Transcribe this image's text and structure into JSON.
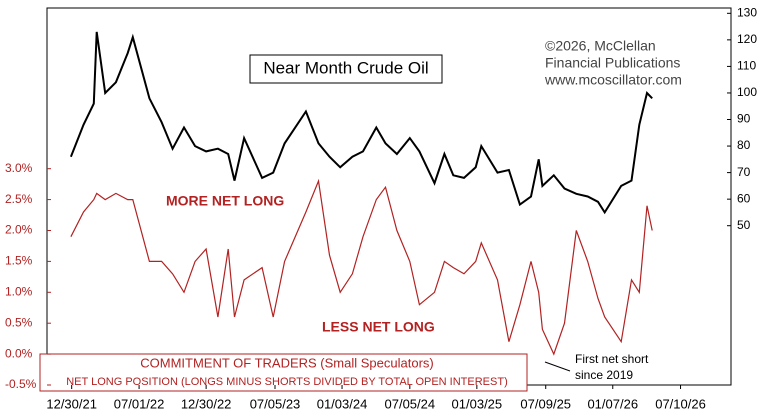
{
  "chart_data": {
    "type": "line",
    "title": "Near Month Crude Oil",
    "credits": [
      "©2026, McClellan",
      "Financial Publications",
      "www.mcoscillator.com"
    ],
    "annotations": [
      "MORE NET LONG",
      "LESS NET LONG",
      "COMMITMENT OF TRADERS (Small Speculators)",
      "NET LONG POSITION (LONGS MINUS SHORTS DIVIDED BY TOTAL OPEN INTEREST)",
      "First net short",
      "since 2019"
    ],
    "x": [
      "2021-12-28",
      "2022-01-31",
      "2022-02-28",
      "2022-03-08",
      "2022-03-31",
      "2022-04-29",
      "2022-05-31",
      "2022-06-14",
      "2022-07-29",
      "2022-08-31",
      "2022-09-30",
      "2022-10-31",
      "2022-11-30",
      "2022-12-30",
      "2023-01-31",
      "2023-02-28",
      "2023-03-17",
      "2023-04-12",
      "2023-05-31",
      "2023-06-30",
      "2023-07-31",
      "2023-09-27",
      "2023-10-31",
      "2023-11-30",
      "2023-12-29",
      "2024-01-31",
      "2024-02-29",
      "2024-04-05",
      "2024-04-30",
      "2024-05-31",
      "2024-07-05",
      "2024-07-31",
      "2024-09-10",
      "2024-10-07",
      "2024-10-31",
      "2024-11-29",
      "2024-12-31",
      "2025-01-15",
      "2025-02-28",
      "2025-03-31",
      "2025-04-30",
      "2025-05-30",
      "2025-06-20",
      "2025-06-30",
      "2025-07-31",
      "2025-08-29",
      "2025-09-30",
      "2025-10-31",
      "2025-11-28",
      "2025-12-16",
      "2026-01-30",
      "2026-02-27",
      "2026-03-20",
      "2026-04-10",
      "2026-04-24"
    ],
    "series": [
      {
        "name": "Near Month Crude Oil",
        "color": "#000000",
        "axis": "y2",
        "values": [
          76,
          88,
          96,
          123,
          100,
          104,
          115,
          121,
          98,
          89,
          79,
          87,
          80,
          78,
          79,
          77,
          67,
          83,
          68,
          70,
          81,
          93,
          81,
          76,
          72,
          76,
          78,
          87,
          81,
          77,
          83,
          78,
          66,
          77,
          69,
          68,
          72,
          80,
          70,
          71,
          58,
          61,
          75,
          65,
          69,
          64,
          62,
          61,
          59,
          55,
          65,
          67,
          88,
          100,
          98
        ]
      },
      {
        "name": "COMMITMENT OF TRADERS (Small Speculators)",
        "color": "#b22222",
        "values": [
          1.9,
          2.3,
          2.5,
          2.6,
          2.5,
          2.6,
          2.5,
          2.5,
          1.5,
          1.5,
          1.3,
          1.0,
          1.5,
          1.7,
          0.6,
          1.7,
          0.6,
          1.2,
          1.4,
          0.6,
          1.5,
          2.3,
          2.8,
          1.6,
          1.0,
          1.3,
          1.9,
          2.5,
          2.7,
          2.0,
          1.5,
          0.8,
          1.0,
          1.5,
          1.4,
          1.3,
          1.5,
          1.8,
          1.2,
          0.2,
          0.8,
          1.5,
          1.0,
          0.4,
          0.0,
          0.5,
          2.0,
          1.5,
          0.9,
          0.6,
          0.2,
          1.2,
          1.0,
          2.4,
          2.0
        ]
      }
    ],
    "xlim": [
      "2021-10-24",
      "2026-11-24"
    ],
    "xticks": [
      {
        "value": "2021-12-30",
        "label": "12/30/21"
      },
      {
        "value": "2022-07-01",
        "label": "07/01/22"
      },
      {
        "value": "2022-12-30",
        "label": "12/30/22"
      },
      {
        "value": "2023-07-05",
        "label": "07/05/23"
      },
      {
        "value": "2024-01-03",
        "label": "01/03/24"
      },
      {
        "value": "2024-07-05",
        "label": "07/05/24"
      },
      {
        "value": "2025-01-03",
        "label": "01/03/25"
      },
      {
        "value": "2025-07-09",
        "label": "07/09/25"
      },
      {
        "value": "2026-01-07",
        "label": "01/07/26"
      },
      {
        "value": "2026-07-10",
        "label": "07/10/26"
      }
    ],
    "ylim": [
      -0.5,
      5.6
    ],
    "yticks": [
      {
        "value": -0.5,
        "label": "-0.5%"
      },
      {
        "value": 0,
        "label": "0.0%"
      },
      {
        "value": 0.5,
        "label": "0.5%"
      },
      {
        "value": 1,
        "label": "1.0%"
      },
      {
        "value": 1.5,
        "label": "1.5%"
      },
      {
        "value": 2,
        "label": "2.0%"
      },
      {
        "value": 2.5,
        "label": "2.5%"
      },
      {
        "value": 3,
        "label": "3.0%"
      }
    ],
    "y2lim": [
      -10,
      132
    ],
    "y2ticks": [
      50,
      60,
      70,
      80,
      90,
      100,
      110,
      120,
      130
    ],
    "grid": false
  }
}
